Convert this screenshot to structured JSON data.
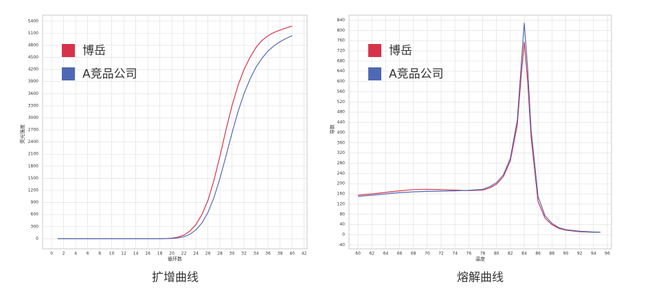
{
  "chart_data": [
    {
      "type": "line",
      "title": "扩增曲线",
      "x_label": "循环数",
      "y_label": "荧光强度",
      "x": [
        1,
        2,
        3,
        4,
        5,
        6,
        7,
        8,
        9,
        10,
        11,
        12,
        13,
        14,
        15,
        16,
        17,
        18,
        19,
        20,
        21,
        22,
        23,
        24,
        25,
        26,
        27,
        28,
        29,
        30,
        31,
        32,
        33,
        34,
        35,
        36,
        37,
        38,
        39,
        40
      ],
      "series": [
        {
          "name": "博岳",
          "color": "#d6334a",
          "values": [
            0,
            0,
            0,
            0,
            0,
            0,
            0,
            0,
            0,
            0,
            0,
            0,
            0,
            0,
            0,
            0,
            0,
            0,
            5,
            15,
            40,
            90,
            190,
            350,
            600,
            950,
            1450,
            2050,
            2700,
            3300,
            3800,
            4200,
            4500,
            4750,
            4920,
            5040,
            5120,
            5180,
            5230,
            5280
          ]
        },
        {
          "name": "A竞品公司",
          "color": "#4f68b4",
          "values": [
            0,
            0,
            0,
            0,
            0,
            0,
            0,
            0,
            0,
            0,
            0,
            0,
            0,
            0,
            0,
            0,
            0,
            0,
            3,
            8,
            20,
            50,
            110,
            220,
            390,
            650,
            1020,
            1500,
            2050,
            2620,
            3150,
            3600,
            3960,
            4260,
            4480,
            4660,
            4790,
            4890,
            4970,
            5040
          ]
        }
      ],
      "xlim": [
        -1.5,
        42.5
      ],
      "ylim": [
        -250,
        5550
      ],
      "xticks": [
        0,
        2,
        4,
        6,
        8,
        10,
        12,
        14,
        16,
        18,
        20,
        22,
        24,
        26,
        28,
        30,
        32,
        34,
        36,
        38,
        40,
        42
      ],
      "yticks": [
        0,
        300,
        600,
        900,
        1200,
        1500,
        1800,
        2100,
        2400,
        2700,
        3000,
        3300,
        3600,
        3900,
        4200,
        4500,
        4800,
        5100,
        5400
      ],
      "grid": true,
      "legend": "upper left"
    },
    {
      "type": "line",
      "title": "熔解曲线",
      "x_label": "温度",
      "y_label": "导数",
      "x": [
        60,
        62,
        64,
        66,
        68,
        70,
        72,
        74,
        76,
        78,
        79,
        80,
        81,
        82,
        83,
        83.5,
        84,
        84.5,
        85,
        86,
        87,
        88,
        89,
        90,
        92,
        94,
        95
      ],
      "series": [
        {
          "name": "博岳",
          "color": "#d6334a",
          "values": [
            155,
            160,
            166,
            172,
            177,
            178,
            177,
            175,
            173,
            175,
            183,
            198,
            228,
            290,
            430,
            600,
            755,
            600,
            380,
            130,
            65,
            40,
            25,
            18,
            12,
            10,
            10
          ]
        },
        {
          "name": "A竞品公司",
          "color": "#4f68b4",
          "values": [
            150,
            155,
            160,
            165,
            168,
            170,
            171,
            172,
            174,
            178,
            188,
            204,
            235,
            300,
            450,
            640,
            830,
            650,
            410,
            150,
            75,
            45,
            28,
            20,
            14,
            11,
            10
          ]
        }
      ],
      "xlim": [
        58.7,
        96.6
      ],
      "ylim": [
        -55,
        860
      ],
      "xticks": [
        60,
        62,
        64,
        66,
        68,
        70,
        72,
        74,
        76,
        78,
        80,
        82,
        84,
        86,
        88,
        90,
        92,
        94,
        96
      ],
      "yticks": [
        -40,
        0,
        40,
        80,
        120,
        160,
        200,
        240,
        280,
        320,
        360,
        400,
        440,
        480,
        520,
        560,
        600,
        640,
        680,
        720,
        760,
        800,
        840
      ],
      "grid": true,
      "legend": "upper left"
    }
  ]
}
